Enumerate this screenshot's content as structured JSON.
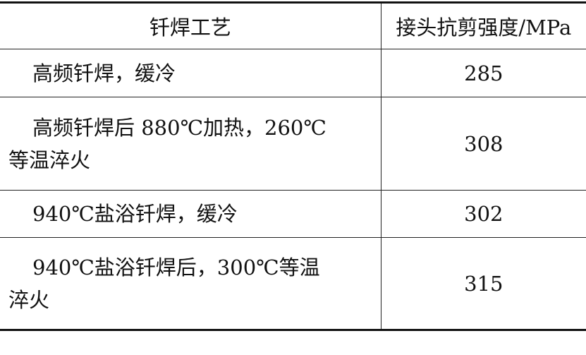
{
  "table": {
    "headers": [
      "钎焊工艺",
      "接头抗剪强度/MPa"
    ],
    "rows": [
      {
        "process_line1": "高频钎焊，缓冷",
        "process_line2": "",
        "strength": "285"
      },
      {
        "process_line1": "高频钎焊后 880℃加热，260℃",
        "process_line2": "等温淬火",
        "strength": "308"
      },
      {
        "process_line1": "940℃盐浴钎焊，缓冷",
        "process_line2": "",
        "strength": "302"
      },
      {
        "process_line1": "940℃盐浴钎焊后，300℃等温",
        "process_line2": "淬火",
        "strength": "315"
      }
    ]
  }
}
